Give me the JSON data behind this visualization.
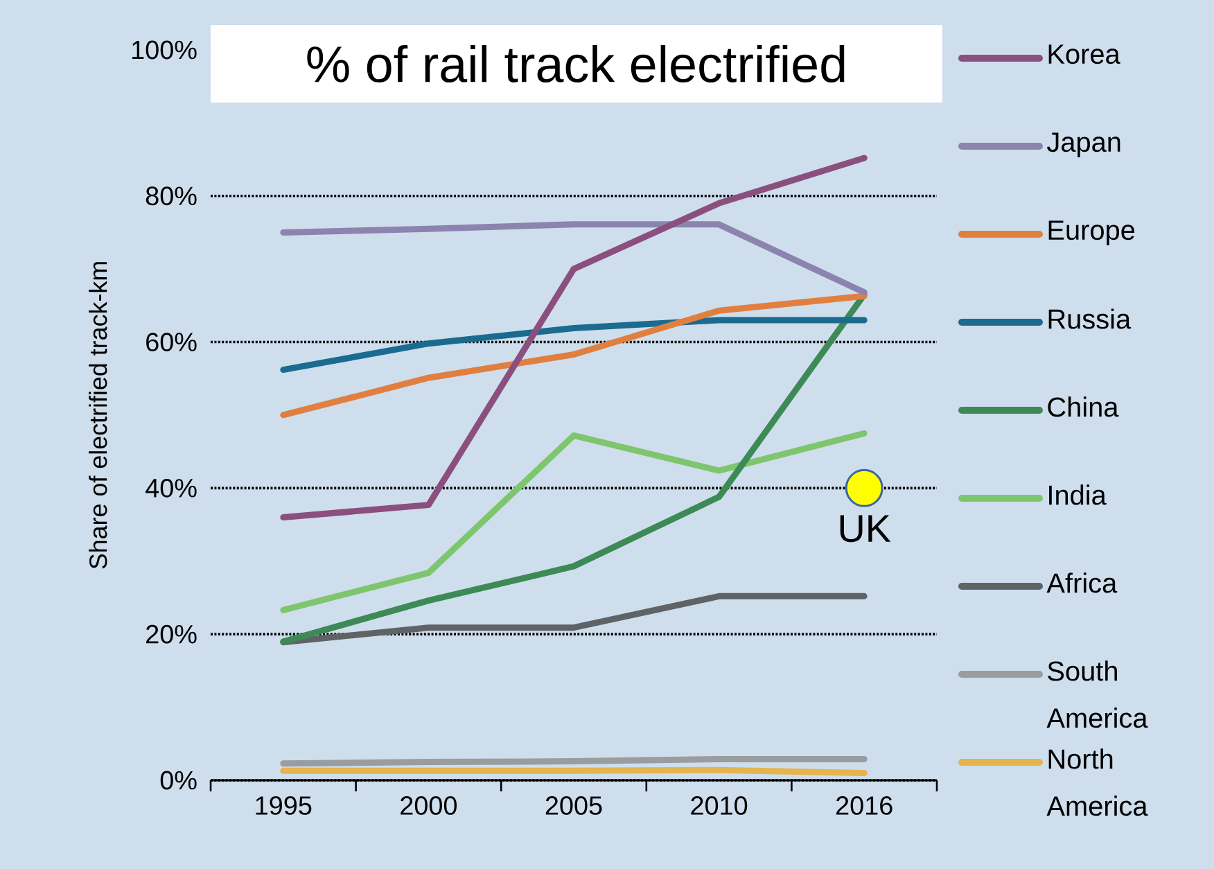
{
  "chart_data": {
    "type": "line",
    "title": "% of rail track electrified",
    "ylabel": "Share of electrified track-km",
    "categories": [
      "1995",
      "2000",
      "2005",
      "2010",
      "2016"
    ],
    "series": [
      {
        "name": "Korea",
        "color": "#8b4f7f",
        "values": [
          36.0,
          37.7,
          70.0,
          79.0,
          85.2
        ]
      },
      {
        "name": "Japan",
        "color": "#8a84ae",
        "values": [
          75.0,
          75.5,
          76.1,
          76.1,
          66.8
        ]
      },
      {
        "name": "Europe",
        "color": "#e07f40",
        "values": [
          50.0,
          55.1,
          58.3,
          64.3,
          66.3
        ]
      },
      {
        "name": "Russia",
        "color": "#1a6b8f",
        "values": [
          56.2,
          59.8,
          61.9,
          63.0,
          63.0
        ]
      },
      {
        "name": "China",
        "color": "#3d8a56",
        "values": [
          19.0,
          24.6,
          29.3,
          38.8,
          66.5
        ]
      },
      {
        "name": "India",
        "color": "#7ec66e",
        "values": [
          23.3,
          28.4,
          47.2,
          42.4,
          47.5
        ]
      },
      {
        "name": "Africa",
        "color": "#5f6366",
        "values": [
          18.9,
          20.9,
          20.9,
          25.2,
          25.2
        ]
      },
      {
        "name": "South America",
        "color": "#9a9ca0",
        "values": [
          2.3,
          2.5,
          2.6,
          2.9,
          2.9
        ]
      },
      {
        "name": "North America",
        "color": "#e5b44e",
        "values": [
          1.3,
          1.3,
          1.3,
          1.4,
          1.0
        ]
      },
      {
        "name": "UK",
        "type": "scatter",
        "color": "#ffff00",
        "values": [
          null,
          null,
          null,
          null,
          40.0
        ]
      }
    ],
    "ylim": [
      0,
      100
    ],
    "yticks": [
      {
        "value": 0,
        "label": "0%"
      },
      {
        "value": 20,
        "label": "20%"
      },
      {
        "value": 40,
        "label": "40%"
      },
      {
        "value": 60,
        "label": "60%"
      },
      {
        "value": 80,
        "label": "80%"
      },
      {
        "value": 100,
        "label": "100%"
      }
    ],
    "grid": "y",
    "legend": "right"
  }
}
